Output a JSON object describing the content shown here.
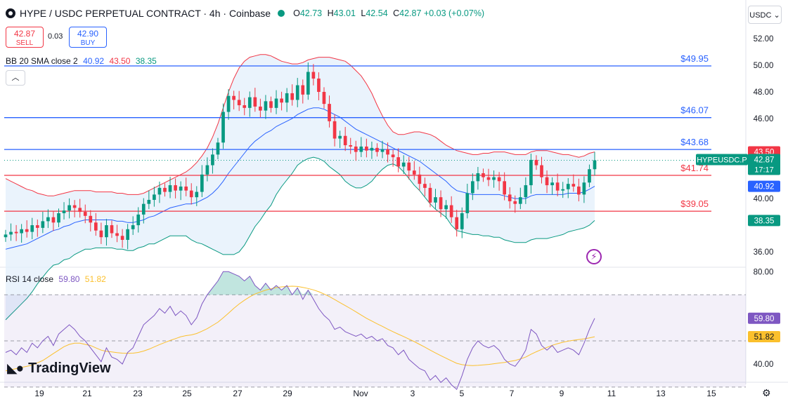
{
  "header": {
    "symbol_title": "HYPE / USDC PERPETUAL CONTRACT · 4h · Coinbase",
    "ohlc": {
      "o_label": "O",
      "o": "42.73",
      "h_label": "H",
      "h": "43.01",
      "l_label": "L",
      "l": "42.54",
      "c_label": "C",
      "c": "42.87",
      "change": "+0.03 (+0.07%)"
    },
    "sell_price": "42.87",
    "sell_label": "SELL",
    "spread": "0.03",
    "buy_price": "42.90",
    "buy_label": "BUY",
    "currency_button": "USDC",
    "collapse_icon": "chevron-up-icon"
  },
  "indicators": {
    "bb_label": "BB 20 SMA close 2",
    "bb_basis": "40.92",
    "bb_upper": "43.50",
    "bb_lower": "38.35",
    "rsi_label": "RSI 14 close",
    "rsi_value": "59.80",
    "rsi_ma": "51.82"
  },
  "branding": {
    "name": "TradingView",
    "logo_icon": "tradingview-logo-icon",
    "flash_icon": "lightning-icon",
    "settings_icon": "settings-icon"
  },
  "colors": {
    "up": "#089981",
    "down": "#f23645",
    "bb_basis": "#2962ff",
    "bb_upper": "#f23645",
    "bb_lower": "#089981",
    "bb_fill": "#e3effb",
    "rsi": "#7e57c2",
    "rsi_ma": "#fbc02d",
    "hline_blue": "#2962ff",
    "hline_red": "#f23645"
  },
  "chart_data": {
    "type": "candlestick",
    "interval": "4h",
    "x_tick_labels": [
      "19",
      "21",
      "23",
      "25",
      "27",
      "29",
      "Nov",
      "3",
      "5",
      "7",
      "9",
      "11",
      "13",
      "15"
    ],
    "price_axis": {
      "ylim": [
        34.9,
        53.0
      ],
      "ticks": [
        "52.00",
        "50.00",
        "48.00",
        "46.00",
        "40.00",
        "36.00"
      ]
    },
    "horizontal_lines": [
      {
        "price": 49.95,
        "label": "$49.95",
        "color": "#2962ff"
      },
      {
        "price": 46.07,
        "label": "$46.07",
        "color": "#2962ff"
      },
      {
        "price": 43.68,
        "label": "$43.68",
        "color": "#2962ff"
      },
      {
        "price": 41.74,
        "label": "$41.74",
        "color": "#f23645"
      },
      {
        "price": 39.05,
        "label": "$39.05",
        "color": "#f23645"
      }
    ],
    "price_tags": [
      {
        "text": "43.50",
        "value": 43.5,
        "color": "#f23645"
      },
      {
        "text": "HYPEUSDC.P",
        "value": 42.87,
        "color": "#089981",
        "sub": "17:17",
        "main": "42.87"
      },
      {
        "text": "40.92",
        "value": 40.92,
        "color": "#2962ff"
      },
      {
        "text": "38.35",
        "value": 38.35,
        "color": "#089981"
      }
    ],
    "closes": [
      37.3,
      37.5,
      37.4,
      37.7,
      37.5,
      38.0,
      37.8,
      38.3,
      38.6,
      38.2,
      38.9,
      39.1,
      39.5,
      39.3,
      39.0,
      38.7,
      38.2,
      37.6,
      37.1,
      38.0,
      37.4,
      37.2,
      36.9,
      37.7,
      38.0,
      38.8,
      39.6,
      39.9,
      40.3,
      40.8,
      40.5,
      41.0,
      40.6,
      40.9,
      40.6,
      40.1,
      40.5,
      41.8,
      42.5,
      43.3,
      44.2,
      46.5,
      47.7,
      47.4,
      47.0,
      46.8,
      47.6,
      46.9,
      46.6,
      47.3,
      46.8,
      47.5,
      47.2,
      47.9,
      47.4,
      48.5,
      47.8,
      49.5,
      49.0,
      48.0,
      47.1,
      45.8,
      44.5,
      44.7,
      44.0,
      43.9,
      43.5,
      43.9,
      43.6,
      43.8,
      43.5,
      43.7,
      43.3,
      43.1,
      42.4,
      42.7,
      42.1,
      41.8,
      41.1,
      40.8,
      39.7,
      40.1,
      39.2,
      39.5,
      38.6,
      37.7,
      38.9,
      40.4,
      41.3,
      41.9,
      41.6,
      41.4,
      41.6,
      41.3,
      40.3,
      39.8,
      39.6,
      40.1,
      41.0,
      42.9,
      42.5,
      41.6,
      41.0,
      41.2,
      40.6,
      40.7,
      41.1,
      40.9,
      40.3,
      41.2,
      42.2,
      42.87
    ],
    "bb_basis_series": [
      36.2,
      36.3,
      36.4,
      36.5,
      36.6,
      36.8,
      37.0,
      37.2,
      37.4,
      37.6,
      37.7,
      37.9,
      38.0,
      38.2,
      38.3,
      38.4,
      38.4,
      38.4,
      38.4,
      38.4,
      38.4,
      38.3,
      38.3,
      38.2,
      38.2,
      38.3,
      38.4,
      38.6,
      38.7,
      38.9,
      39.1,
      39.3,
      39.4,
      39.5,
      39.6,
      39.6,
      39.7,
      39.9,
      40.1,
      40.4,
      40.8,
      41.3,
      41.9,
      42.4,
      42.9,
      43.4,
      43.9,
      44.3,
      44.6,
      44.9,
      45.1,
      45.4,
      45.6,
      45.8,
      46.0,
      46.3,
      46.5,
      46.7,
      46.8,
      46.8,
      46.7,
      46.5,
      46.3,
      46.1,
      45.8,
      45.5,
      45.2,
      45.0,
      44.8,
      44.6,
      44.4,
      44.2,
      44.0,
      43.8,
      43.6,
      43.4,
      43.2,
      43.0,
      42.8,
      42.5,
      42.2,
      41.9,
      41.6,
      41.3,
      40.9,
      40.6,
      40.5,
      40.4,
      40.3,
      40.3,
      40.3,
      40.3,
      40.3,
      40.3,
      40.2,
      40.1,
      40.0,
      40.0,
      40.0,
      40.2,
      40.3,
      40.3,
      40.3,
      40.3,
      40.3,
      40.3,
      40.4,
      40.4,
      40.4,
      40.5,
      40.7,
      40.92
    ],
    "bb_upper_series": [
      41.5,
      41.3,
      41.1,
      40.9,
      40.7,
      40.6,
      40.4,
      40.3,
      40.2,
      40.2,
      40.3,
      40.4,
      40.5,
      40.6,
      40.6,
      40.6,
      40.6,
      40.5,
      40.5,
      40.5,
      40.5,
      40.4,
      40.4,
      40.3,
      40.3,
      40.3,
      40.4,
      40.6,
      40.8,
      41.0,
      41.2,
      41.4,
      41.6,
      41.8,
      42.0,
      42.3,
      42.7,
      43.2,
      43.8,
      44.6,
      45.6,
      46.8,
      48.0,
      49.0,
      49.8,
      50.3,
      50.6,
      50.7,
      50.8,
      50.8,
      50.7,
      50.5,
      50.3,
      50.2,
      50.1,
      50.1,
      50.2,
      50.4,
      50.5,
      50.6,
      50.6,
      50.6,
      50.5,
      50.4,
      50.3,
      50.0,
      49.6,
      49.2,
      48.6,
      47.9,
      47.0,
      46.2,
      45.5,
      45.0,
      44.8,
      44.8,
      44.9,
      45.0,
      45.0,
      44.9,
      44.8,
      44.6,
      44.3,
      44.0,
      43.8,
      43.6,
      43.5,
      43.4,
      43.3,
      43.3,
      43.4,
      43.4,
      43.5,
      43.5,
      43.5,
      43.4,
      43.3,
      43.3,
      43.3,
      43.5,
      43.6,
      43.6,
      43.6,
      43.5,
      43.4,
      43.3,
      43.3,
      43.2,
      43.1,
      43.2,
      43.4,
      43.5
    ],
    "bb_lower_series": [
      30.9,
      31.3,
      31.7,
      32.1,
      32.5,
      33.0,
      33.6,
      34.1,
      34.6,
      35.0,
      35.1,
      35.4,
      35.5,
      35.8,
      36.0,
      36.2,
      36.2,
      36.3,
      36.3,
      36.3,
      36.3,
      36.2,
      36.2,
      36.1,
      36.1,
      36.3,
      36.4,
      36.6,
      36.6,
      36.8,
      37.0,
      37.2,
      37.2,
      37.2,
      37.2,
      36.9,
      36.7,
      36.6,
      36.4,
      36.2,
      36.0,
      35.8,
      35.8,
      35.8,
      36.0,
      36.5,
      37.2,
      37.9,
      38.4,
      39.0,
      39.5,
      40.3,
      40.9,
      41.4,
      41.9,
      42.5,
      42.8,
      43.0,
      43.1,
      43.0,
      42.8,
      42.4,
      42.1,
      41.8,
      41.3,
      41.0,
      40.8,
      40.8,
      41.0,
      41.3,
      41.8,
      42.2,
      42.5,
      42.6,
      42.4,
      42.0,
      41.5,
      41.0,
      40.6,
      40.1,
      39.6,
      39.2,
      38.9,
      38.6,
      38.0,
      37.6,
      37.5,
      37.4,
      37.3,
      37.3,
      37.2,
      37.2,
      37.1,
      37.1,
      36.9,
      36.8,
      36.7,
      36.7,
      36.7,
      36.9,
      37.0,
      37.0,
      37.0,
      37.1,
      37.2,
      37.3,
      37.5,
      37.6,
      37.7,
      37.8,
      38.0,
      38.35
    ],
    "rsi_axis": {
      "ylim": [
        33.0,
        81.0
      ],
      "ticks": [
        "80.00",
        "40.00"
      ],
      "band_upper": 70,
      "band_mid": 50,
      "band_lower": 30
    },
    "rsi_series": [
      45,
      46,
      44,
      47,
      45,
      49,
      47,
      50,
      52,
      48,
      53,
      55,
      57,
      55,
      52,
      50,
      47,
      44,
      41,
      47,
      43,
      42,
      40,
      45,
      47,
      52,
      57,
      59,
      61,
      64,
      62,
      65,
      61,
      63,
      61,
      57,
      60,
      66,
      70,
      73,
      76,
      80,
      80,
      79,
      78,
      76,
      78,
      74,
      72,
      75,
      72,
      74,
      72,
      74,
      70,
      73,
      68,
      72,
      68,
      64,
      61,
      59,
      55,
      56,
      54,
      53,
      52,
      53,
      51,
      52,
      50,
      51,
      48,
      47,
      44,
      46,
      42,
      40,
      38,
      37,
      33,
      35,
      32,
      34,
      31,
      29,
      35,
      42,
      47,
      50,
      48,
      47,
      48,
      46,
      42,
      40,
      39,
      42,
      46,
      55,
      53,
      48,
      46,
      48,
      45,
      46,
      47,
      46,
      44,
      49,
      55,
      59.8
    ],
    "rsi_ma_series": [
      37.0,
      37.5,
      38.0,
      38.5,
      39.0,
      39.5,
      40.5,
      41.5,
      43.0,
      44.5,
      46.0,
      47.5,
      48.5,
      49.0,
      49.0,
      48.5,
      48.0,
      47.0,
      46.0,
      45.5,
      45.2,
      44.9,
      44.7,
      44.6,
      44.7,
      45.0,
      45.6,
      46.4,
      47.4,
      48.4,
      49.3,
      50.2,
      51.0,
      51.8,
      52.3,
      52.6,
      53.2,
      54.2,
      55.3,
      56.7,
      58.1,
      60.0,
      62.0,
      64.1,
      66.0,
      67.6,
      69.1,
      70.3,
      71.2,
      72.0,
      72.6,
      73.1,
      73.4,
      73.6,
      73.7,
      73.6,
      73.2,
      72.7,
      72.1,
      71.3,
      70.3,
      69.2,
      67.9,
      66.6,
      65.3,
      64.0,
      62.6,
      61.2,
      59.8,
      58.6,
      57.4,
      56.3,
      55.1,
      54.0,
      52.9,
      51.9,
      50.8,
      49.7,
      48.5,
      47.3,
      46.0,
      44.8,
      43.6,
      42.5,
      41.4,
      40.3,
      39.7,
      39.4,
      39.3,
      39.4,
      39.6,
      39.8,
      40.1,
      40.4,
      40.7,
      41.1,
      41.5,
      42.2,
      43.0,
      44.2,
      45.3,
      46.3,
      47.2,
      48.1,
      48.8,
      49.4,
      49.9,
      50.3,
      50.6,
      50.9,
      51.3,
      51.82
    ]
  }
}
